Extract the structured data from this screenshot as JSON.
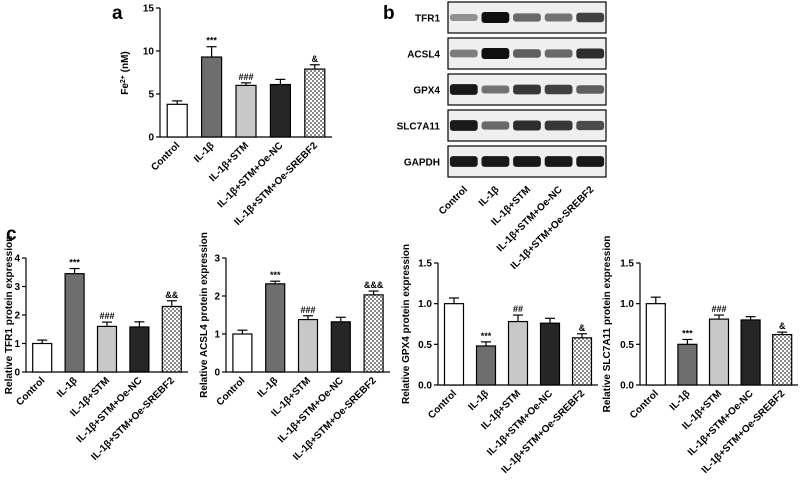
{
  "panel_labels": {
    "a": "a",
    "b": "b",
    "c": "c"
  },
  "colors": {
    "control": "#ffffff",
    "il1b": "#6e6e6e",
    "stm": "#c8c8c8",
    "oe_nc": "#262626",
    "oe_srebf2": "checkered white/grey"
  },
  "western_blot": {
    "bands": [
      "TFR1",
      "ACSL4",
      "GPX4",
      "SLC7A11",
      "GAPDH"
    ],
    "lanes": [
      "Control",
      "IL-1β",
      "IL-1β+STM",
      "IL-1β+STM+Oe-NC",
      "IL-1β+STM+Oe-SREBF2"
    ],
    "band_intensity": [
      [
        0.35,
        1.0,
        0.55,
        0.5,
        0.75
      ],
      [
        0.45,
        1.0,
        0.6,
        0.55,
        0.85
      ],
      [
        0.95,
        0.5,
        0.8,
        0.75,
        0.6
      ],
      [
        0.95,
        0.55,
        0.85,
        0.8,
        0.7
      ],
      [
        0.95,
        0.95,
        0.95,
        0.95,
        0.95
      ]
    ]
  },
  "chart_data": [
    {
      "panel": "a",
      "type": "bar",
      "categories": [
        "Control",
        "IL-1β",
        "IL-1β+STM",
        "IL-1β+STM+Oe-NC",
        "IL-1β+STM+Oe-SREBF2"
      ],
      "values": [
        3.8,
        9.3,
        6.0,
        6.1,
        7.9
      ],
      "errors": [
        0.4,
        1.2,
        0.3,
        0.6,
        0.5
      ],
      "annotations": [
        "",
        "***",
        "###",
        "",
        "&"
      ],
      "ylabel": "Fe2+ (nM)",
      "ylim": [
        0,
        15
      ],
      "yticks": [
        0,
        5,
        10,
        15
      ],
      "yticklabels": [
        "0",
        "5",
        "10",
        "15"
      ]
    },
    {
      "panel": "c1",
      "type": "bar",
      "categories": [
        "Control",
        "IL-1β",
        "IL-1β+STM",
        "IL-1β+STM+Oe-NC",
        "IL-1β+STM+Oe-SREBF2"
      ],
      "values": [
        1.0,
        3.45,
        1.6,
        1.58,
        2.3
      ],
      "errors": [
        0.12,
        0.18,
        0.15,
        0.18,
        0.2
      ],
      "annotations": [
        "",
        "***",
        "###",
        "",
        "&&"
      ],
      "ylabel": "Relative TFR1 protein expression",
      "ylim": [
        0,
        4
      ],
      "yticks": [
        0,
        1,
        2,
        3,
        4
      ],
      "yticklabels": [
        "0",
        "1",
        "2",
        "3",
        "4"
      ]
    },
    {
      "panel": "c2",
      "type": "bar",
      "categories": [
        "Control",
        "IL-1β",
        "IL-1β+STM",
        "IL-1β+STM+Oe-NC",
        "IL-1β+STM+Oe-SREBF2"
      ],
      "values": [
        1.0,
        2.32,
        1.38,
        1.32,
        2.03
      ],
      "errors": [
        0.1,
        0.07,
        0.1,
        0.12,
        0.1
      ],
      "annotations": [
        "",
        "***",
        "###",
        "",
        "&&&"
      ],
      "ylabel": "Relative ACSL4 protein expression",
      "ylim": [
        0,
        3
      ],
      "yticks": [
        0,
        1,
        2,
        3
      ],
      "yticklabels": [
        "0",
        "1",
        "2",
        "3"
      ]
    },
    {
      "panel": "c3",
      "type": "bar",
      "categories": [
        "Control",
        "IL-1β",
        "IL-1β+STM",
        "IL-1β+STM+Oe-NC",
        "IL-1β+STM+Oe-SREBF2"
      ],
      "values": [
        1.0,
        0.48,
        0.78,
        0.76,
        0.58
      ],
      "errors": [
        0.07,
        0.05,
        0.08,
        0.06,
        0.05
      ],
      "annotations": [
        "",
        "***",
        "##",
        "",
        "&"
      ],
      "ylabel": "Relative GPX4 protein expression",
      "ylim": [
        0,
        1.5
      ],
      "yticks": [
        0,
        0.5,
        1.0,
        1.5
      ],
      "yticklabels": [
        "0.0",
        "0.5",
        "1.0",
        "1.5"
      ]
    },
    {
      "panel": "c4",
      "type": "bar",
      "categories": [
        "Control",
        "IL-1β",
        "IL-1β+STM",
        "IL-1β+STM+Oe-NC",
        "IL-1β+STM+Oe-SREBF2"
      ],
      "values": [
        1.0,
        0.5,
        0.81,
        0.8,
        0.62
      ],
      "errors": [
        0.08,
        0.06,
        0.05,
        0.04,
        0.03
      ],
      "annotations": [
        "",
        "***",
        "###",
        "",
        "&"
      ],
      "ylabel": "Relative SLC7A11 protein expression",
      "ylim": [
        0,
        1.5
      ],
      "yticks": [
        0,
        0.5,
        1.0,
        1.5
      ],
      "yticklabels": [
        "0.0",
        "0.5",
        "1.0",
        "1.5"
      ]
    }
  ]
}
